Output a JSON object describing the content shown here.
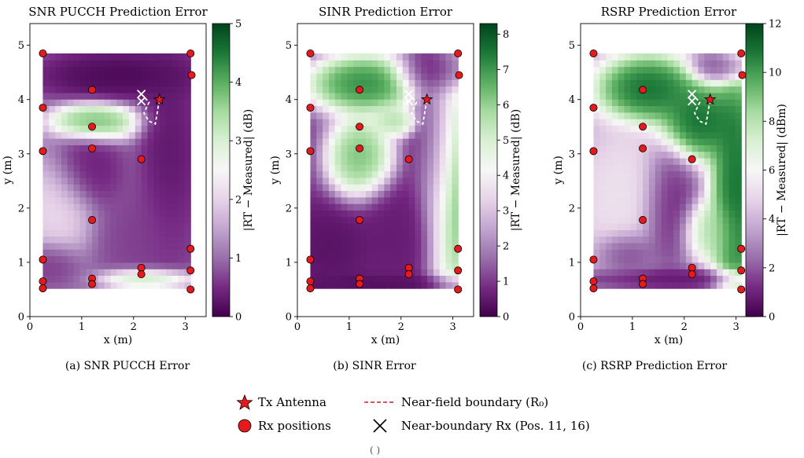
{
  "figure": {
    "captions": [
      "(a) SNR PUCCH Error",
      "(b) SINR Error",
      "(c) RSRP Prediction Error"
    ],
    "legend": {
      "tx": "Tx Antenna",
      "rx": "Rx positions",
      "near_field": "Near-field boundary (R₀)",
      "near_boundary": "Near-boundary Rx (Pos. 11, 16)"
    },
    "footer": "( )"
  },
  "chart_data": [
    {
      "type": "heatmap",
      "title": "SNR PUCCH Prediction Error",
      "xlabel": "x (m)",
      "ylabel": "y (m)",
      "colorbar_label": "|RT − Measured| (dB)",
      "xlim": [
        0,
        3.4
      ],
      "ylim": [
        0,
        5.4
      ],
      "xticks": [
        0,
        1,
        2,
        3
      ],
      "yticks": [
        0,
        1,
        2,
        3,
        4,
        5
      ],
      "cbar_range": [
        0,
        5
      ],
      "cbar_ticks": [
        0,
        1,
        2,
        3,
        4,
        5
      ],
      "colormap": [
        "#40004b",
        "#762a83",
        "#9970ab",
        "#c2a5cf",
        "#e7d4e8",
        "#f7f7f7",
        "#d9f0d3",
        "#a6dba0",
        "#5aae61",
        "#1b7837",
        "#00441b"
      ],
      "tx": {
        "x": 2.5,
        "y": 4.0
      },
      "rx": [
        [
          0.25,
          4.85
        ],
        [
          3.1,
          4.85
        ],
        [
          3.12,
          4.45
        ],
        [
          1.2,
          4.18
        ],
        [
          0.25,
          3.85
        ],
        [
          1.2,
          3.5
        ],
        [
          1.2,
          3.1
        ],
        [
          0.25,
          3.05
        ],
        [
          2.15,
          2.9
        ],
        [
          1.2,
          1.78
        ],
        [
          3.1,
          1.25
        ],
        [
          0.25,
          1.05
        ],
        [
          2.15,
          0.9
        ],
        [
          3.1,
          0.85
        ],
        [
          2.15,
          0.78
        ],
        [
          1.2,
          0.7
        ],
        [
          0.25,
          0.65
        ],
        [
          1.2,
          0.6
        ],
        [
          0.25,
          0.52
        ],
        [
          3.1,
          0.5
        ]
      ],
      "near_boundary_rx": [
        [
          2.15,
          4.1
        ],
        [
          2.15,
          3.97
        ]
      ],
      "near_field_boundary": [
        [
          2.15,
          4.1
        ],
        [
          2.3,
          3.95
        ],
        [
          2.2,
          3.75
        ],
        [
          2.3,
          3.6
        ],
        [
          2.42,
          3.55
        ],
        [
          2.5,
          4.0
        ]
      ]
    },
    {
      "type": "heatmap",
      "title": "SINR Prediction Error",
      "xlabel": "x (m)",
      "ylabel": "y (m)",
      "colorbar_label": "|RT − Measured| (dB)",
      "xlim": [
        0,
        3.4
      ],
      "ylim": [
        0,
        5.4
      ],
      "xticks": [
        0,
        1,
        2,
        3
      ],
      "yticks": [
        0,
        1,
        2,
        3,
        4,
        5
      ],
      "cbar_range": [
        0,
        8.3
      ],
      "cbar_ticks": [
        0,
        1,
        2,
        3,
        4,
        5,
        6,
        7,
        8
      ],
      "colormap": [
        "#40004b",
        "#762a83",
        "#9970ab",
        "#c2a5cf",
        "#e7d4e8",
        "#f7f7f7",
        "#d9f0d3",
        "#a6dba0",
        "#5aae61",
        "#1b7837",
        "#00441b"
      ],
      "tx": {
        "x": 2.5,
        "y": 4.0
      },
      "rx": [
        [
          0.25,
          4.85
        ],
        [
          3.1,
          4.85
        ],
        [
          3.12,
          4.45
        ],
        [
          1.2,
          4.18
        ],
        [
          0.25,
          3.85
        ],
        [
          1.2,
          3.5
        ],
        [
          1.2,
          3.1
        ],
        [
          0.25,
          3.05
        ],
        [
          2.15,
          2.9
        ],
        [
          1.2,
          1.78
        ],
        [
          3.1,
          1.25
        ],
        [
          0.25,
          1.05
        ],
        [
          2.15,
          0.9
        ],
        [
          3.1,
          0.85
        ],
        [
          2.15,
          0.78
        ],
        [
          1.2,
          0.7
        ],
        [
          0.25,
          0.65
        ],
        [
          1.2,
          0.6
        ],
        [
          0.25,
          0.52
        ],
        [
          3.1,
          0.5
        ]
      ],
      "near_boundary_rx": [
        [
          2.15,
          4.1
        ],
        [
          2.15,
          3.97
        ]
      ],
      "near_field_boundary": [
        [
          2.15,
          4.1
        ],
        [
          2.3,
          3.95
        ],
        [
          2.2,
          3.75
        ],
        [
          2.3,
          3.6
        ],
        [
          2.42,
          3.55
        ],
        [
          2.5,
          4.0
        ]
      ]
    },
    {
      "type": "heatmap",
      "title": "RSRP Prediction Error",
      "xlabel": "x (m)",
      "ylabel": "y (m)",
      "colorbar_label": "|RT − Measured| (dBm)",
      "xlim": [
        0,
        3.4
      ],
      "ylim": [
        0,
        5.4
      ],
      "xticks": [
        0,
        1,
        2,
        3
      ],
      "yticks": [
        0,
        1,
        2,
        3,
        4,
        5
      ],
      "cbar_range": [
        0,
        12
      ],
      "cbar_ticks": [
        0,
        2,
        4,
        6,
        8,
        10,
        12
      ],
      "colormap": [
        "#40004b",
        "#762a83",
        "#9970ab",
        "#c2a5cf",
        "#e7d4e8",
        "#f7f7f7",
        "#d9f0d3",
        "#a6dba0",
        "#5aae61",
        "#1b7837",
        "#00441b"
      ],
      "tx": {
        "x": 2.5,
        "y": 4.0
      },
      "rx": [
        [
          0.25,
          4.85
        ],
        [
          3.1,
          4.85
        ],
        [
          3.12,
          4.45
        ],
        [
          1.2,
          4.18
        ],
        [
          0.25,
          3.85
        ],
        [
          1.2,
          3.5
        ],
        [
          1.2,
          3.1
        ],
        [
          0.25,
          3.05
        ],
        [
          2.15,
          2.9
        ],
        [
          1.2,
          1.78
        ],
        [
          3.1,
          1.25
        ],
        [
          0.25,
          1.05
        ],
        [
          2.15,
          0.9
        ],
        [
          3.1,
          0.85
        ],
        [
          2.15,
          0.78
        ],
        [
          1.2,
          0.7
        ],
        [
          0.25,
          0.65
        ],
        [
          1.2,
          0.6
        ],
        [
          0.25,
          0.52
        ],
        [
          3.1,
          0.5
        ]
      ],
      "near_boundary_rx": [
        [
          2.15,
          4.1
        ],
        [
          2.15,
          3.97
        ]
      ],
      "near_field_boundary": [
        [
          2.15,
          4.1
        ],
        [
          2.3,
          3.95
        ],
        [
          2.2,
          3.75
        ],
        [
          2.3,
          3.6
        ],
        [
          2.42,
          3.55
        ],
        [
          2.5,
          4.0
        ]
      ]
    }
  ]
}
